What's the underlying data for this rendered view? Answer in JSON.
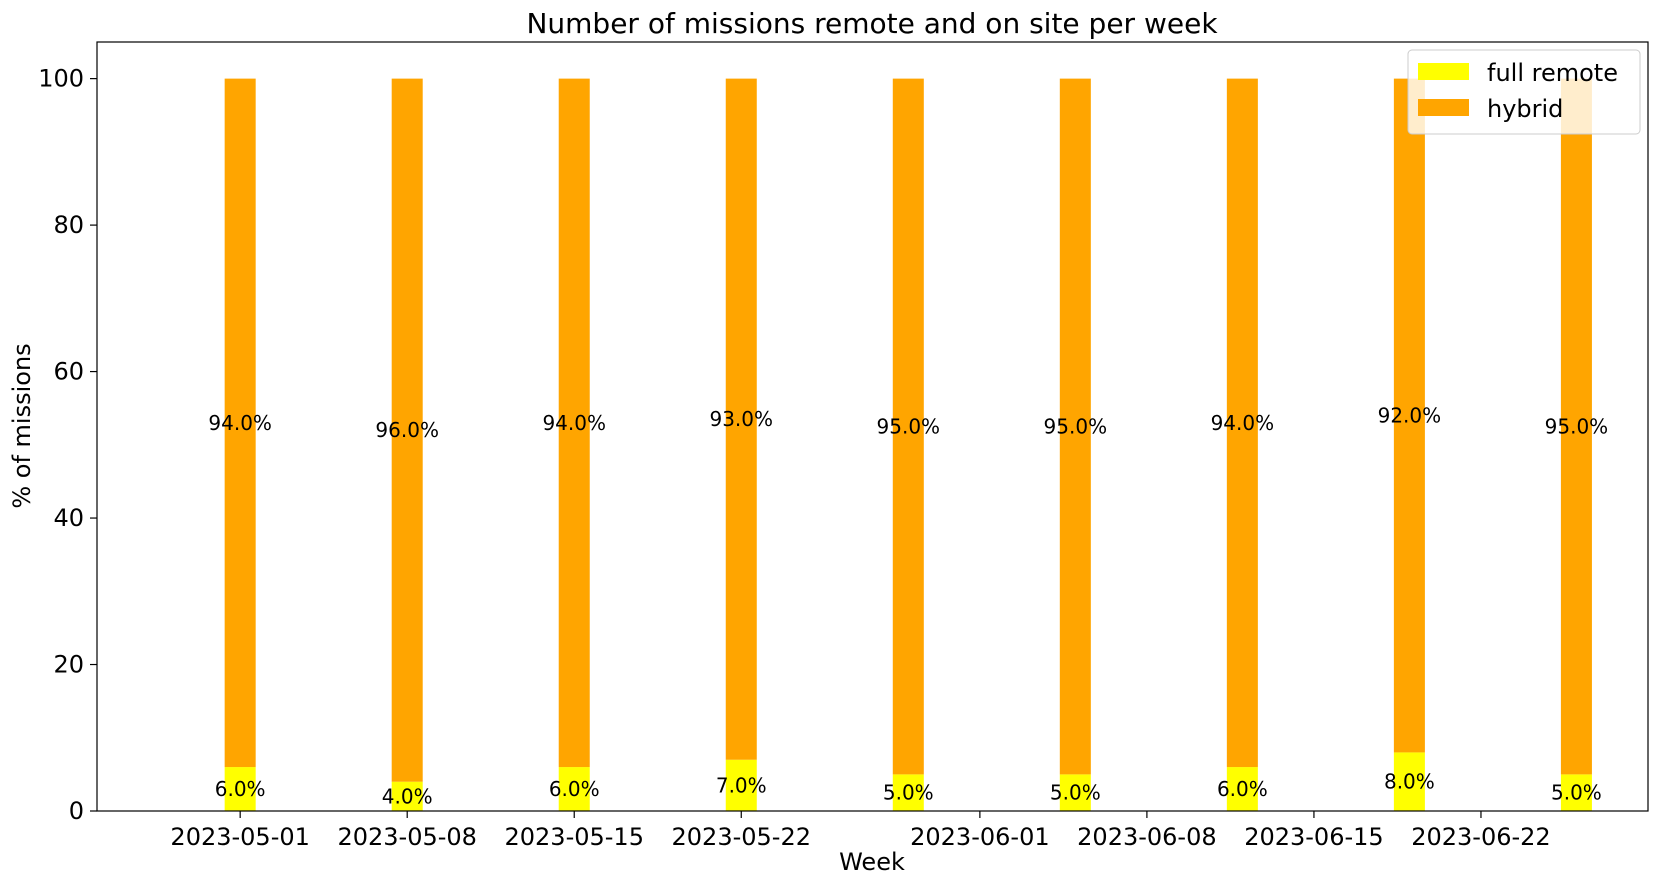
{
  "chart_data": {
    "type": "bar",
    "stacked": true,
    "title": "Number of missions remote and on site per week",
    "xlabel": "Week",
    "ylabel": "% of missions",
    "ylim": [
      0,
      105
    ],
    "yticks": [
      0,
      20,
      40,
      60,
      80,
      100
    ],
    "xlim": [
      "2023-04-25",
      "2023-06-29"
    ],
    "xticks": [
      "2023-05-01",
      "2023-05-08",
      "2023-05-15",
      "2023-05-22",
      "2023-06-01",
      "2023-06-08",
      "2023-06-15",
      "2023-06-22"
    ],
    "categories": [
      "2023-05-01",
      "2023-05-08",
      "2023-05-15",
      "2023-05-22",
      "2023-05-29",
      "2023-06-05",
      "2023-06-12",
      "2023-06-19",
      "2023-06-26"
    ],
    "series": [
      {
        "name": "full remote",
        "color": "#ffff00",
        "values": [
          6,
          4,
          6,
          7,
          5,
          5,
          6,
          8,
          5
        ],
        "labels": [
          "6.0%",
          "4.0%",
          "6.0%",
          "7.0%",
          "5.0%",
          "5.0%",
          "6.0%",
          "8.0%",
          "5.0%"
        ]
      },
      {
        "name": "hybrid",
        "color": "#ffa500",
        "values": [
          94,
          96,
          94,
          93,
          95,
          95,
          94,
          92,
          95
        ],
        "labels": [
          "94.0%",
          "96.0%",
          "94.0%",
          "93.0%",
          "95.0%",
          "95.0%",
          "94.0%",
          "92.0%",
          "95.0%"
        ]
      }
    ],
    "legend": {
      "placement": "top-right"
    },
    "grid": false
  }
}
